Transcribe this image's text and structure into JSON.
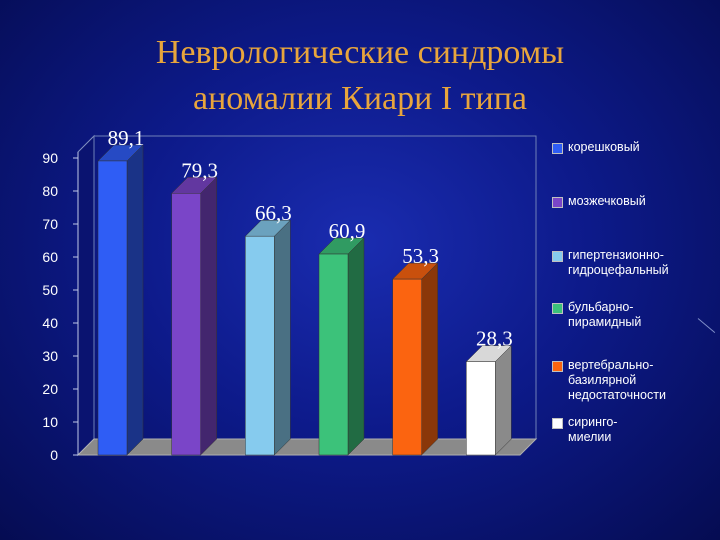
{
  "title_line1": "Неврологические синдромы",
  "title_line2": "аномалии Киари I типа",
  "chart_data": {
    "type": "bar",
    "categories": [
      "корешковый",
      "мозжечковый",
      "гипертензионно-\nгидроцефальный",
      "бульбарно-\nпирамидный",
      "вертебрально-\nбазилярной\nнедостаточности",
      "сиринго-\nмиелии"
    ],
    "values": [
      89.1,
      79.3,
      66.3,
      60.9,
      53.3,
      28.3
    ],
    "value_labels": [
      "89,1",
      "79,3",
      "66,3",
      "60,9",
      "53,3",
      "28,3"
    ],
    "y_ticks": [
      "0",
      "10",
      "20",
      "30",
      "40",
      "50",
      "60",
      "70",
      "80",
      "90"
    ],
    "ylim": [
      0,
      90
    ],
    "colors": [
      "#2f5df5",
      "#7a45c8",
      "#86cbee",
      "#3cc27a",
      "#fb6410",
      "#ffffff"
    ],
    "legend_position": "right",
    "grid": false
  }
}
